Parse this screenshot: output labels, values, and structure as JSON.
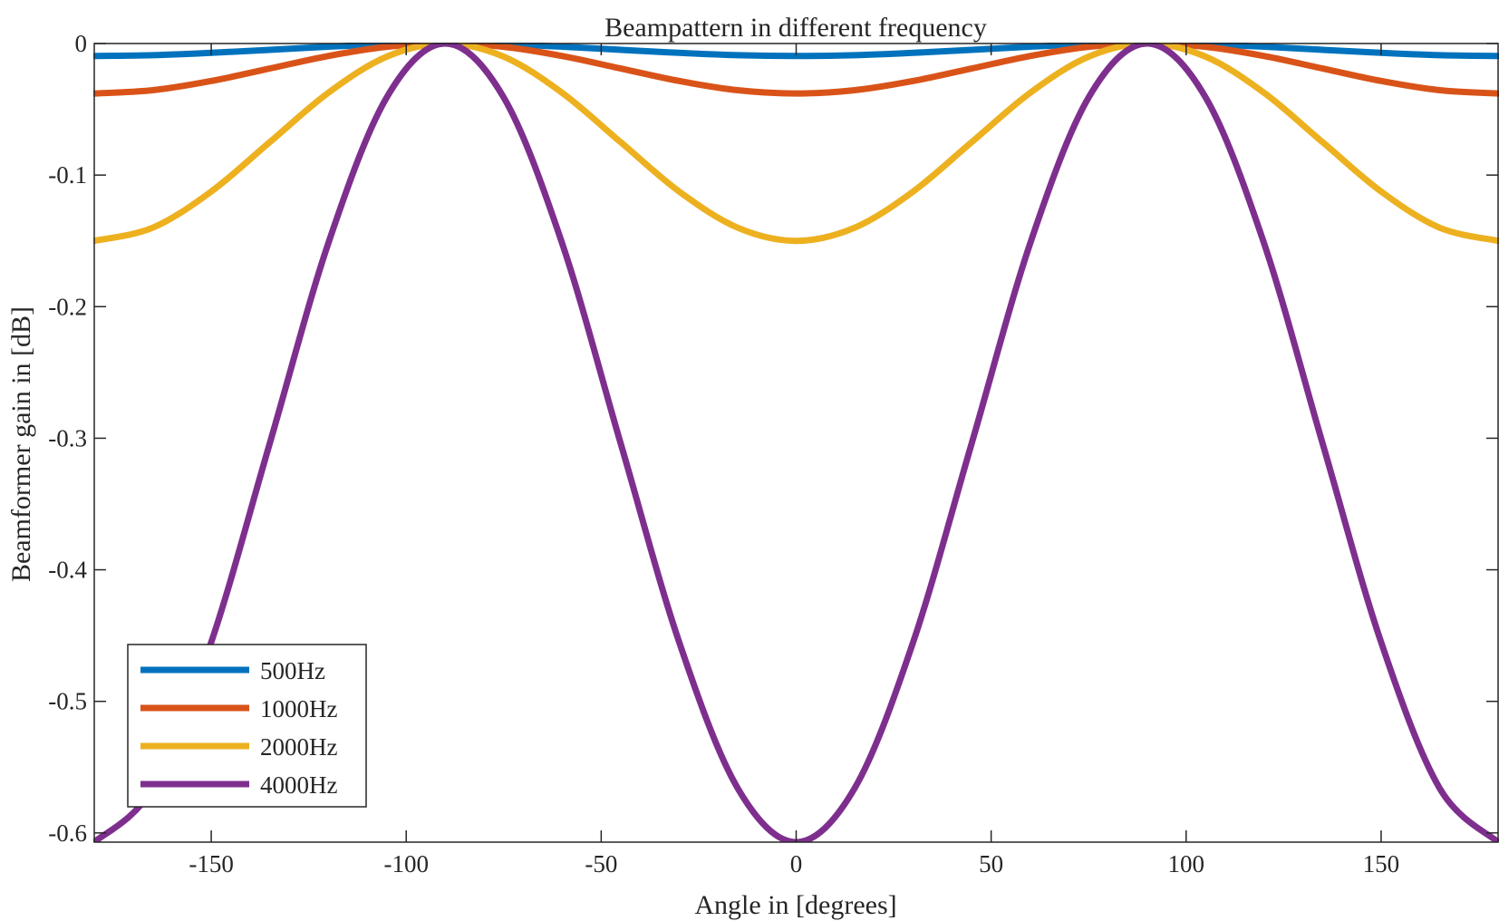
{
  "chart_data": {
    "type": "line",
    "title": "Beampattern in different frequency",
    "xlabel": "Angle in [degrees]",
    "ylabel": "Beamformer gain in [dB]",
    "xlim": [
      -180,
      180
    ],
    "ylim": [
      -0.607,
      0
    ],
    "xticks": [
      -150,
      -100,
      -50,
      0,
      50,
      100,
      150
    ],
    "xtick_labels": [
      "-150",
      "-100",
      "-50",
      "0",
      "50",
      "100",
      "150"
    ],
    "yticks": [
      0,
      -0.1,
      -0.2,
      -0.3,
      -0.4,
      -0.5,
      -0.6
    ],
    "ytick_labels": [
      "0",
      "-0.1",
      "-0.2",
      "-0.3",
      "-0.4",
      "-0.5",
      "-0.6"
    ],
    "grid": false,
    "legend_position": "bottom-left",
    "x": [
      -180,
      -165,
      -150,
      -135,
      -120,
      -105,
      -90,
      -75,
      -60,
      -45,
      -30,
      -15,
      0,
      15,
      30,
      45,
      60,
      75,
      90,
      105,
      120,
      135,
      150,
      165,
      180
    ],
    "series": [
      {
        "name": "500Hz",
        "color": "#0072BD",
        "values": [
          -0.0095,
          -0.0089,
          -0.0071,
          -0.0048,
          -0.0024,
          -0.0006,
          0,
          -0.0006,
          -0.0024,
          -0.0048,
          -0.0071,
          -0.0089,
          -0.0095,
          -0.0089,
          -0.0071,
          -0.0048,
          -0.0024,
          -0.0006,
          0,
          -0.0006,
          -0.0024,
          -0.0048,
          -0.0071,
          -0.0089,
          -0.0095
        ]
      },
      {
        "name": "1000Hz",
        "color": "#D95319",
        "values": [
          -0.038,
          -0.0355,
          -0.0285,
          -0.019,
          -0.0095,
          -0.0025,
          0,
          -0.0025,
          -0.0095,
          -0.019,
          -0.0285,
          -0.0355,
          -0.038,
          -0.0355,
          -0.0285,
          -0.019,
          -0.0095,
          -0.0025,
          0,
          -0.0025,
          -0.0095,
          -0.019,
          -0.0285,
          -0.0355,
          -0.038
        ]
      },
      {
        "name": "2000Hz",
        "color": "#EDB120",
        "values": [
          -0.15,
          -0.14,
          -0.1125,
          -0.075,
          -0.0375,
          -0.01,
          0,
          -0.01,
          -0.0375,
          -0.075,
          -0.1125,
          -0.14,
          -0.15,
          -0.14,
          -0.1125,
          -0.075,
          -0.0375,
          -0.01,
          0,
          -0.01,
          -0.0375,
          -0.075,
          -0.1125,
          -0.14,
          -0.15
        ]
      },
      {
        "name": "4000Hz",
        "color": "#7E2F8E",
        "values": [
          -0.607,
          -0.566,
          -0.455,
          -0.304,
          -0.152,
          -0.041,
          0,
          -0.041,
          -0.152,
          -0.304,
          -0.455,
          -0.566,
          -0.607,
          -0.566,
          -0.455,
          -0.304,
          -0.152,
          -0.041,
          0,
          -0.041,
          -0.152,
          -0.304,
          -0.455,
          -0.566,
          -0.607
        ]
      }
    ]
  }
}
